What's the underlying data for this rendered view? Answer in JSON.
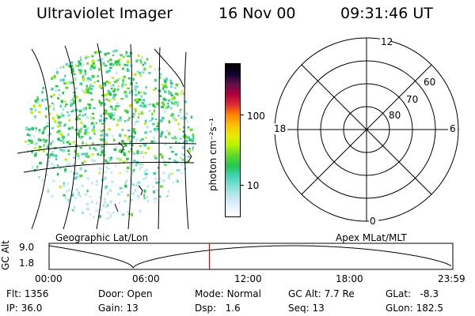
{
  "header": {
    "instrument": "Ultraviolet Imager",
    "date": "16 Nov 00",
    "time": "09:31:46 UT"
  },
  "colorbar": {
    "label": "photon cm⁻²s⁻¹",
    "ticks": [
      "100",
      "10"
    ],
    "scale": "log",
    "colors": [
      "#ffffff",
      "#e6f0ff",
      "#bfe8ee",
      "#80e0d6",
      "#3cd4b4",
      "#21c850",
      "#5ed82c",
      "#b8f400",
      "#e8ec00",
      "#ffc000",
      "#ff8000",
      "#e03030",
      "#b0003c",
      "#60104a",
      "#140530",
      "#000000"
    ]
  },
  "geo_panel": {
    "label": "Geographic Lat/Lon"
  },
  "polar_panel": {
    "label": "Apex MLat/MLT",
    "mlt_labels": [
      "12",
      "18",
      "6",
      "0"
    ],
    "mlat_labels": [
      "60",
      "70",
      "80"
    ]
  },
  "timeline": {
    "ylabel": "GC Alt",
    "y_ticks": [
      "9.0",
      "1.8"
    ],
    "x_ticks": [
      "00:00",
      "06:00",
      "12:00",
      "18:00",
      "23:59"
    ],
    "current_marker_hour": 9.53,
    "marker_color": "#e00000"
  },
  "info": {
    "flt_label": "Flt:",
    "flt_value": "1356",
    "ip_label": "IP:",
    "ip_value": "36.0",
    "door_label": "Door:",
    "door_value": "Open",
    "gain_label": "Gain:",
    "gain_value": "13",
    "mode_label": "Mode:",
    "mode_value": "Normal",
    "dsp_label": "Dsp:",
    "dsp_value": "1.6",
    "gcalt_label": "GC Alt:",
    "gcalt_value": "7.7 Re",
    "seq_label": "Seq:",
    "seq_value": "13",
    "glat_label": "GLat:",
    "glat_value": "-8.3",
    "glon_label": "GLon:",
    "glon_value": "182.5"
  }
}
